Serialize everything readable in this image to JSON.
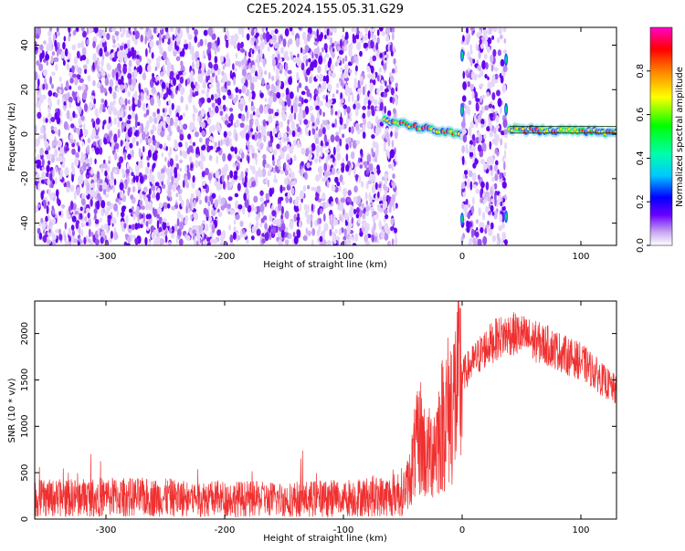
{
  "title": "C2E5.2024.155.05.31.G29",
  "chart_data": [
    {
      "type": "heatmap",
      "xlabel": "Height of straight line (km)",
      "ylabel": "Frequency (Hz)",
      "xlim": [
        -360,
        130
      ],
      "ylim": [
        -50,
        48
      ],
      "xticks": [
        -300,
        -200,
        -100,
        0,
        100
      ],
      "yticks": [
        -40,
        -20,
        0,
        20,
        40
      ],
      "colorbar": {
        "label": "Normalized spectral amplitude",
        "range": [
          0,
          1
        ],
        "ticks": [
          0.0,
          0.2,
          0.4,
          0.6,
          0.8
        ]
      },
      "regions": [
        {
          "x": [
            -360,
            -55
          ],
          "kind": "noise"
        },
        {
          "x": [
            -65,
            0
          ],
          "kind": "signal-band",
          "freq": [
            6,
            0
          ]
        },
        {
          "x": [
            0,
            37
          ],
          "kind": "noise"
        },
        {
          "x": [
            40,
            130
          ],
          "kind": "signal-band",
          "freq": [
            2,
            1
          ]
        }
      ]
    },
    {
      "type": "line",
      "xlabel": "Height of straight line (km)",
      "ylabel": "SNR (10 * v/v)",
      "xlim": [
        -360,
        130
      ],
      "ylim": [
        0,
        2350
      ],
      "xticks": [
        -300,
        -200,
        -100,
        0,
        100
      ],
      "yticks": [
        0,
        500,
        1000,
        1500,
        2000
      ],
      "color": "#f03030",
      "series": [
        {
          "x": [
            -360,
            -300,
            -250,
            -200,
            -150,
            -100,
            -60,
            -50,
            -45,
            -40,
            -35,
            -30,
            -25,
            -20,
            -15,
            -10,
            -5,
            0,
            10,
            20,
            30,
            40,
            50,
            60,
            70,
            80,
            90,
            100,
            110,
            120,
            130
          ],
          "values": [
            220,
            240,
            230,
            220,
            210,
            230,
            250,
            300,
            400,
            700,
            900,
            650,
            750,
            900,
            1100,
            1200,
            1350,
            1550,
            1700,
            1850,
            1950,
            2000,
            1980,
            1920,
            1880,
            1820,
            1750,
            1700,
            1600,
            1480,
            1380
          ]
        }
      ]
    }
  ]
}
